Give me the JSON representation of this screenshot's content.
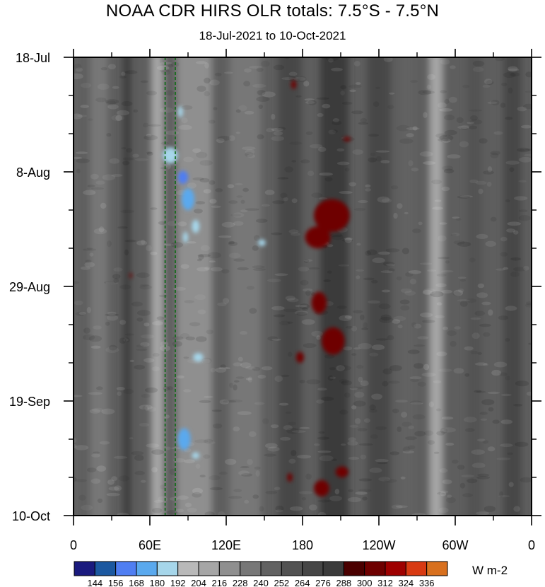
{
  "header": {
    "title": "NOAA CDR HIRS OLR totals: 7.5°S - 7.5°N",
    "subtitle": "18-Jul-2021 to 10-Oct-2021"
  },
  "colorbar": {
    "unit": "W m-2",
    "levels": [
      "144",
      "156",
      "168",
      "180",
      "192",
      "204",
      "216",
      "228",
      "240",
      "252",
      "264",
      "276",
      "288",
      "300",
      "312",
      "324",
      "336"
    ],
    "colors": [
      "#1a1a7e",
      "#1b58a0",
      "#4f7ef2",
      "#5aa9ee",
      "#a6d6ea",
      "#b9b9b9",
      "#a6a6a6",
      "#8f8f8f",
      "#777777",
      "#626262",
      "#525252",
      "#464646",
      "#3b3b3b",
      "#4a0000",
      "#6e0000",
      "#9e0000",
      "#d83a12",
      "#d8701e"
    ]
  },
  "chart_data": {
    "type": "heatmap",
    "title": "NOAA CDR HIRS OLR totals: 7.5°S - 7.5°N",
    "subtitle": "18-Jul-2021 to 10-Oct-2021",
    "xlabel": "",
    "ylabel": "",
    "x_ticks": [
      "0",
      "60E",
      "120E",
      "180",
      "120W",
      "60W",
      "0"
    ],
    "x_tick_values": [
      0,
      60,
      120,
      180,
      240,
      300,
      360
    ],
    "xlim": [
      0,
      360
    ],
    "y_ticks": [
      "18-Jul",
      "8-Aug",
      "29-Aug",
      "19-Sep",
      "10-Oct"
    ],
    "y_tick_values": [
      "2021-07-18",
      "2021-08-08",
      "2021-08-29",
      "2021-09-19",
      "2021-10-10"
    ],
    "ylim": [
      "2021-07-18",
      "2021-10-10"
    ],
    "colorbar_unit": "W m-2",
    "levels": [
      144,
      156,
      168,
      180,
      192,
      204,
      216,
      228,
      240,
      252,
      264,
      276,
      288,
      300,
      312,
      324,
      336
    ],
    "reference_lines_lon": [
      72,
      80
    ],
    "bands": [
      {
        "lon": 2,
        "width": 8,
        "value": 248
      },
      {
        "lon": 20,
        "width": 14,
        "value": 228
      },
      {
        "lon": 42,
        "width": 6,
        "value": 282
      },
      {
        "lon": 66,
        "width": 10,
        "value": 214
      },
      {
        "lon": 95,
        "width": 28,
        "value": 220
      },
      {
        "lon": 135,
        "width": 25,
        "value": 238
      },
      {
        "lon": 170,
        "width": 18,
        "value": 264
      },
      {
        "lon": 205,
        "width": 22,
        "value": 276
      },
      {
        "lon": 240,
        "width": 18,
        "value": 264
      },
      {
        "lon": 263,
        "width": 12,
        "value": 250
      },
      {
        "lon": 285,
        "width": 11,
        "value": 212
      },
      {
        "lon": 315,
        "width": 12,
        "value": 256
      },
      {
        "lon": 345,
        "width": 14,
        "value": 264
      }
    ],
    "blobs": [
      {
        "lon": 90,
        "date": "2021-08-13",
        "lon_radius": 5,
        "day_radius": 2,
        "value": 168
      },
      {
        "lon": 86,
        "date": "2021-08-09",
        "lon_radius": 4,
        "day_radius": 1.2,
        "value": 156
      },
      {
        "lon": 76,
        "date": "2021-08-05",
        "lon_radius": 6,
        "day_radius": 1.5,
        "value": 180
      },
      {
        "lon": 84,
        "date": "2021-07-28",
        "lon_radius": 2,
        "day_radius": 1,
        "value": 180
      },
      {
        "lon": 96,
        "date": "2021-08-18",
        "lon_radius": 3,
        "day_radius": 1.2,
        "value": 180
      },
      {
        "lon": 88,
        "date": "2021-08-20",
        "lon_radius": 2,
        "day_radius": 1,
        "value": 180
      },
      {
        "lon": 148,
        "date": "2021-08-21",
        "lon_radius": 3,
        "day_radius": 0.6,
        "value": 180
      },
      {
        "lon": 98,
        "date": "2021-09-11",
        "lon_radius": 4,
        "day_radius": 0.8,
        "value": 180
      },
      {
        "lon": 87,
        "date": "2021-09-26",
        "lon_radius": 5,
        "day_radius": 2,
        "value": 168
      },
      {
        "lon": 96,
        "date": "2021-09-29",
        "lon_radius": 3,
        "day_radius": 0.6,
        "value": 180
      },
      {
        "lon": 203,
        "date": "2021-08-16",
        "lon_radius": 14,
        "day_radius": 3,
        "value": 300
      },
      {
        "lon": 192,
        "date": "2021-08-20",
        "lon_radius": 10,
        "day_radius": 2,
        "value": 300
      },
      {
        "lon": 204,
        "date": "2021-09-08",
        "lon_radius": 9,
        "day_radius": 2.5,
        "value": 300
      },
      {
        "lon": 193,
        "date": "2021-09-01",
        "lon_radius": 6,
        "day_radius": 2,
        "value": 300
      },
      {
        "lon": 178,
        "date": "2021-09-11",
        "lon_radius": 3,
        "day_radius": 1,
        "value": 300
      },
      {
        "lon": 173,
        "date": "2021-07-23",
        "lon_radius": 2,
        "day_radius": 0.8,
        "value": 300
      },
      {
        "lon": 211,
        "date": "2021-10-02",
        "lon_radius": 5,
        "day_radius": 1,
        "value": 300
      },
      {
        "lon": 195,
        "date": "2021-10-05",
        "lon_radius": 6,
        "day_radius": 1.5,
        "value": 300
      },
      {
        "lon": 170,
        "date": "2021-10-03",
        "lon_radius": 2,
        "day_radius": 0.8,
        "value": 300
      },
      {
        "lon": 215,
        "date": "2021-08-02",
        "lon_radius": 3,
        "day_radius": 0.4,
        "value": 300
      },
      {
        "lon": 45,
        "date": "2021-08-27",
        "lon_radius": 1,
        "day_radius": 0.5,
        "value": 300
      }
    ]
  }
}
